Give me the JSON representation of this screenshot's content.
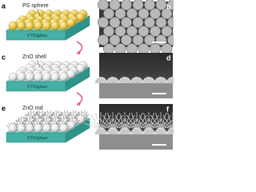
{
  "schematics": [
    {
      "letter": "a",
      "label": "PS sphere",
      "substrate": "FTO/glass"
    },
    {
      "letter": "c",
      "label": "ZnO shell",
      "substrate": "FTO/glass"
    },
    {
      "letter": "e",
      "label": "ZnO rod",
      "substrate": "FTO/glass"
    }
  ],
  "images": [
    {
      "letter": "b"
    },
    {
      "letter": "d"
    },
    {
      "letter": "f"
    }
  ]
}
